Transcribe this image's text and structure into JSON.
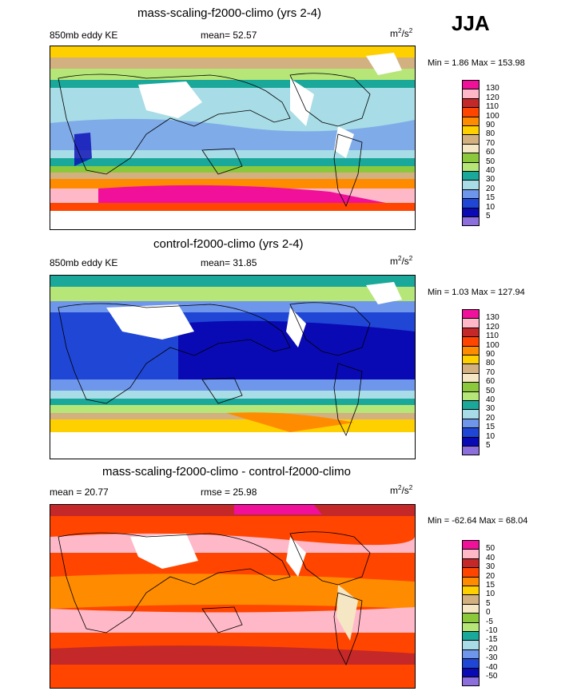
{
  "season": "JJA",
  "units_main": "m",
  "units_sup1": "2",
  "units_slash": "/s",
  "units_sup2": "2",
  "panels": [
    {
      "title": "mass-scaling-f2000-climo (yrs 2-4)",
      "left": "850mb eddy KE",
      "center": "mean=  52.57",
      "minmax": "Min =   1.86 Max = 153.98",
      "levels": [
        "130",
        "120",
        "110",
        "100",
        "90",
        "80",
        "70",
        "60",
        "50",
        "40",
        "30",
        "20",
        "15",
        "10",
        "5"
      ],
      "colors": [
        "#f0109a",
        "#ffb8c8",
        "#c42828",
        "#ff4500",
        "#ff8c00",
        "#ffd000",
        "#d2b080",
        "#f5e6c4",
        "#8cc83c",
        "#b6e678",
        "#1aa89a",
        "#a8dce6",
        "#6e96ea",
        "#2046d6",
        "#0a0ab4",
        "#8c6edc"
      ]
    },
    {
      "title": "control-f2000-climo (yrs 2-4)",
      "left": "850mb eddy KE",
      "center": "mean=  31.85",
      "minmax": "Min =   1.03 Max = 127.94",
      "levels": [
        "130",
        "120",
        "110",
        "100",
        "90",
        "80",
        "70",
        "60",
        "50",
        "40",
        "30",
        "20",
        "15",
        "10",
        "5"
      ],
      "colors": [
        "#f0109a",
        "#ffb8c8",
        "#c42828",
        "#ff4500",
        "#ff8c00",
        "#ffd000",
        "#d2b080",
        "#f5e6c4",
        "#8cc83c",
        "#b6e678",
        "#1aa89a",
        "#a8dce6",
        "#6e96ea",
        "#2046d6",
        "#0a0ab4",
        "#8c6edc"
      ]
    },
    {
      "title": "mass-scaling-f2000-climo - control-f2000-climo",
      "left": "mean =  20.77",
      "center": "rmse =  25.98",
      "minmax": "Min = -62.64 Max =  68.04",
      "levels": [
        "50",
        "40",
        "30",
        "20",
        "15",
        "10",
        "5",
        "0",
        "-5",
        "-10",
        "-15",
        "-20",
        "-30",
        "-40",
        "-50"
      ],
      "colors": [
        "#f0109a",
        "#ffb8c8",
        "#c42828",
        "#ff4500",
        "#ff8c00",
        "#ffd000",
        "#d2b080",
        "#f5e6c4",
        "#8cc83c",
        "#b6e678",
        "#1aa89a",
        "#a8dce6",
        "#6e96ea",
        "#2046d6",
        "#0a0ab4",
        "#8c6edc"
      ]
    }
  ]
}
